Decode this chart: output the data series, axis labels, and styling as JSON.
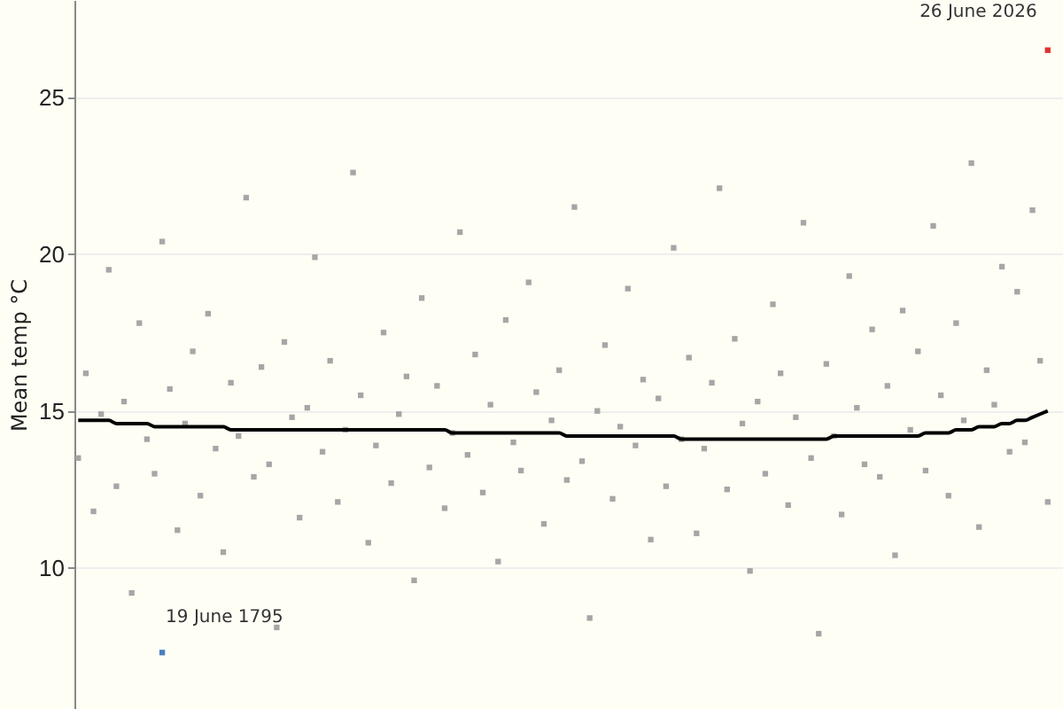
{
  "chart_data": {
    "type": "scatter",
    "ylabel": "Mean temp °C",
    "ylim": [
      5.5,
      28.1
    ],
    "yticks": [
      10,
      15,
      20,
      25
    ],
    "grid": "y",
    "legend": false,
    "marker": "square",
    "categories": [
      null,
      null,
      null,
      null,
      null,
      null,
      null,
      null,
      null,
      null,
      null,
      null,
      null,
      null,
      null,
      null,
      null,
      null,
      null,
      null,
      null,
      null,
      null,
      null,
      null,
      null,
      null,
      null,
      null,
      null,
      null,
      null,
      null,
      null,
      null,
      null,
      null,
      null,
      null,
      null,
      null,
      null,
      null,
      null,
      null,
      null,
      null,
      null,
      null,
      null,
      null,
      null,
      null,
      null,
      null,
      null,
      null,
      null,
      null,
      null,
      null,
      null,
      null,
      null,
      null,
      null,
      null,
      null,
      null,
      null,
      null,
      null,
      null,
      null,
      null,
      null,
      null,
      null,
      null,
      null,
      null,
      null,
      null,
      null,
      null,
      null,
      null,
      null,
      null,
      null,
      null,
      null,
      null,
      null,
      null,
      null,
      null,
      null,
      null,
      null,
      null,
      null,
      null,
      null,
      null,
      null,
      null,
      null,
      null,
      null,
      null,
      null,
      null,
      null,
      null,
      null,
      null,
      null,
      null,
      null,
      null,
      null,
      null,
      null,
      null,
      null,
      null,
      null
    ],
    "series": [
      {
        "color": "#a6a6a6",
        "values": [
          13.5,
          16.2,
          11.8,
          14.9,
          19.5,
          12.6,
          15.3,
          9.2,
          17.8,
          14.1,
          13.0,
          20.4,
          15.7,
          11.2,
          14.6,
          16.9,
          12.3,
          18.1,
          13.8,
          10.5,
          15.9,
          14.2,
          21.8,
          12.9,
          16.4,
          13.3,
          8.1,
          17.2,
          14.8,
          11.6,
          15.1,
          19.9,
          13.7,
          16.6,
          12.1,
          14.4,
          22.6,
          15.5,
          10.8,
          13.9,
          17.5,
          12.7,
          14.9,
          16.1,
          9.6,
          18.6,
          13.2,
          15.8,
          11.9,
          14.3,
          20.7,
          13.6,
          16.8,
          12.4,
          15.2,
          10.2,
          17.9,
          14.0,
          13.1,
          19.1,
          15.6,
          11.4,
          14.7,
          16.3,
          12.8,
          21.5,
          13.4,
          8.4,
          15.0,
          17.1,
          12.2,
          14.5,
          18.9,
          13.9,
          16.0,
          10.9,
          15.4,
          12.6,
          20.2,
          14.1,
          16.7,
          11.1,
          13.8,
          15.9,
          22.1,
          12.5,
          17.3,
          14.6,
          9.9,
          15.3,
          13.0,
          18.4,
          16.2,
          12.0,
          14.8,
          21.0,
          13.5,
          7.9,
          16.5,
          14.2,
          11.7,
          19.3,
          15.1,
          13.3,
          17.6,
          12.9,
          15.8,
          10.4,
          18.2,
          14.4,
          16.9,
          13.1,
          20.9,
          15.5,
          12.3,
          17.8,
          14.7,
          22.9,
          11.3,
          16.3,
          15.2,
          19.6,
          13.7,
          18.8,
          14.0,
          21.4,
          16.6,
          12.1
        ]
      },
      {
        "type": "line",
        "color": "#000000",
        "marker": "none",
        "values": [
          14.7,
          14.7,
          14.7,
          14.7,
          14.7,
          14.6,
          14.6,
          14.6,
          14.6,
          14.6,
          14.5,
          14.5,
          14.5,
          14.5,
          14.5,
          14.5,
          14.5,
          14.5,
          14.5,
          14.5,
          14.4,
          14.4,
          14.4,
          14.4,
          14.4,
          14.4,
          14.4,
          14.4,
          14.4,
          14.4,
          14.4,
          14.4,
          14.4,
          14.4,
          14.4,
          14.4,
          14.4,
          14.4,
          14.4,
          14.4,
          14.4,
          14.4,
          14.4,
          14.4,
          14.4,
          14.4,
          14.4,
          14.4,
          14.4,
          14.3,
          14.3,
          14.3,
          14.3,
          14.3,
          14.3,
          14.3,
          14.3,
          14.3,
          14.3,
          14.3,
          14.3,
          14.3,
          14.3,
          14.3,
          14.2,
          14.2,
          14.2,
          14.2,
          14.2,
          14.2,
          14.2,
          14.2,
          14.2,
          14.2,
          14.2,
          14.2,
          14.2,
          14.2,
          14.2,
          14.1,
          14.1,
          14.1,
          14.1,
          14.1,
          14.1,
          14.1,
          14.1,
          14.1,
          14.1,
          14.1,
          14.1,
          14.1,
          14.1,
          14.1,
          14.1,
          14.1,
          14.1,
          14.1,
          14.1,
          14.2,
          14.2,
          14.2,
          14.2,
          14.2,
          14.2,
          14.2,
          14.2,
          14.2,
          14.2,
          14.2,
          14.2,
          14.3,
          14.3,
          14.3,
          14.3,
          14.4,
          14.4,
          14.4,
          14.5,
          14.5,
          14.5,
          14.6,
          14.6,
          14.7,
          14.7,
          14.8,
          14.9,
          15.0
        ]
      },
      {
        "color": "#4a7fc0",
        "values": [
          null,
          null,
          null,
          null,
          null,
          null,
          null,
          null,
          null,
          null,
          null,
          7.3,
          null,
          null,
          null,
          null,
          null,
          null,
          null,
          null,
          null,
          null,
          null,
          null,
          null,
          null,
          null,
          null,
          null,
          null,
          null,
          null,
          null,
          null,
          null,
          null,
          null,
          null,
          null,
          null,
          null,
          null,
          null,
          null,
          null,
          null,
          null,
          null,
          null,
          null,
          null,
          null,
          null,
          null,
          null,
          null,
          null,
          null,
          null,
          null,
          null,
          null,
          null,
          null,
          null,
          null,
          null,
          null,
          null,
          null,
          null,
          null,
          null,
          null,
          null,
          null,
          null,
          null,
          null,
          null,
          null,
          null,
          null,
          null,
          null,
          null,
          null,
          null,
          null,
          null,
          null,
          null,
          null,
          null,
          null,
          null,
          null,
          null,
          null,
          null,
          null,
          null,
          null,
          null,
          null,
          null,
          null,
          null,
          null,
          null,
          null,
          null,
          null,
          null,
          null,
          null,
          null,
          null,
          null,
          null,
          null,
          null,
          null,
          null,
          null,
          null,
          null,
          null
        ]
      },
      {
        "color": "#e03030",
        "values": [
          null,
          null,
          null,
          null,
          null,
          null,
          null,
          null,
          null,
          null,
          null,
          null,
          null,
          null,
          null,
          null,
          null,
          null,
          null,
          null,
          null,
          null,
          null,
          null,
          null,
          null,
          null,
          null,
          null,
          null,
          null,
          null,
          null,
          null,
          null,
          null,
          null,
          null,
          null,
          null,
          null,
          null,
          null,
          null,
          null,
          null,
          null,
          null,
          null,
          null,
          null,
          null,
          null,
          null,
          null,
          null,
          null,
          null,
          null,
          null,
          null,
          null,
          null,
          null,
          null,
          null,
          null,
          null,
          null,
          null,
          null,
          null,
          null,
          null,
          null,
          null,
          null,
          null,
          null,
          null,
          null,
          null,
          null,
          null,
          null,
          null,
          null,
          null,
          null,
          null,
          null,
          null,
          null,
          null,
          null,
          null,
          null,
          null,
          null,
          null,
          null,
          null,
          null,
          null,
          null,
          null,
          null,
          null,
          null,
          null,
          null,
          null,
          null,
          null,
          null,
          null,
          null,
          null,
          null,
          null,
          null,
          null,
          null,
          null,
          null,
          null,
          null,
          26.5
        ]
      }
    ],
    "annotations": [
      "19 June 1795",
      "26 June 2026"
    ]
  }
}
